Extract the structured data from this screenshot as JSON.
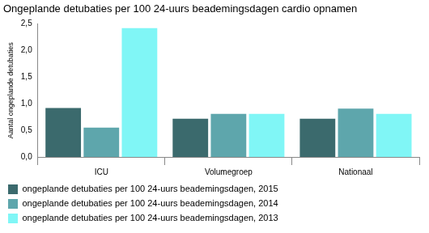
{
  "chart_data": {
    "type": "bar",
    "title": "Ongeplande detubaties per 100 24-uurs beademingsdagen cardio opnamen",
    "y_label": "Aantal ongeplande detubaties",
    "categories": [
      "ICU",
      "Volumegroep",
      "Nationaal"
    ],
    "series": [
      {
        "name": "ongeplande detubaties per 100 24-uurs beademingsdagen, 2015",
        "color": "#3b6a6d",
        "values": [
          0.92,
          0.72,
          0.72
        ]
      },
      {
        "name": "ongeplande detubaties per 100 24-uurs beademingsdagen, 2014",
        "color": "#5ea6ac",
        "values": [
          0.55,
          0.81,
          0.91
        ]
      },
      {
        "name": "ongeplande detubaties per 100 24-uurs beademingsdagen, 2013",
        "color": "#80f6f6",
        "values": [
          2.42,
          0.81,
          0.81
        ]
      }
    ],
    "ylim": [
      0,
      2.5
    ],
    "yticks": [
      {
        "value": 0,
        "label": "0,0"
      },
      {
        "value": 0.5,
        "label": "0,5"
      },
      {
        "value": 1,
        "label": "1,0"
      },
      {
        "value": 1.5,
        "label": "1,5"
      },
      {
        "value": 2,
        "label": "2,0"
      },
      {
        "value": 2.5,
        "label": "2,5"
      }
    ],
    "grid": false,
    "legend": "bottom"
  }
}
